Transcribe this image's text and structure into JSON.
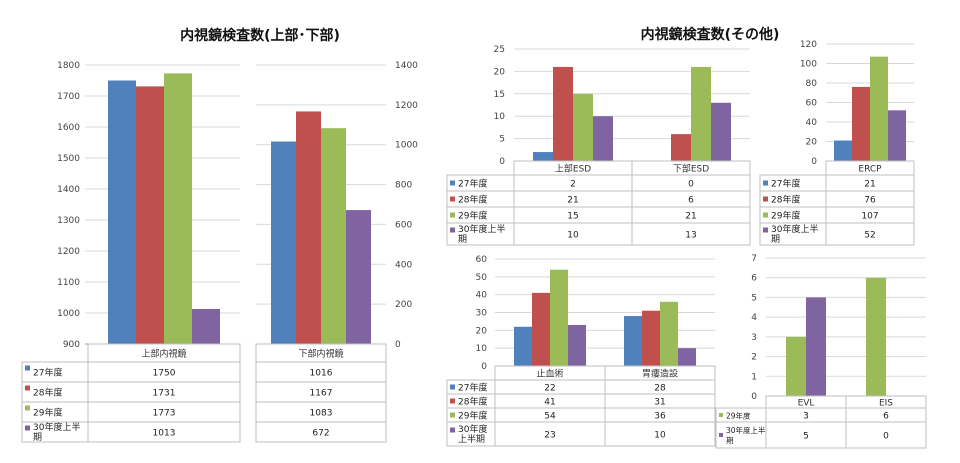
{
  "colors": {
    "27": "#4f81bd",
    "28": "#c0504d",
    "29": "#9bbb59",
    "30": "#8064a2"
  },
  "chart_data": [
    {
      "id": "upper",
      "type": "bar",
      "title": "内視鏡検査数(上部･下部)",
      "categories": [
        "上部内視鏡"
      ],
      "series": [
        {
          "name": "27年度",
          "values": [
            1750
          ]
        },
        {
          "name": "28年度",
          "values": [
            1731
          ]
        },
        {
          "name": "29年度",
          "values": [
            1773
          ]
        },
        {
          "name": "30年度上半期",
          "values": [
            1013
          ]
        }
      ],
      "ylim": [
        900,
        1800
      ],
      "yticks": [
        "900",
        "1000",
        "1100",
        "1200",
        "1300",
        "1400",
        "1500",
        "1600",
        "1700",
        "1800"
      ]
    },
    {
      "id": "lower",
      "type": "bar",
      "categories": [
        "下部内視鏡"
      ],
      "series": [
        {
          "name": "27年度",
          "values": [
            1016
          ]
        },
        {
          "name": "28年度",
          "values": [
            1167
          ]
        },
        {
          "name": "29年度",
          "values": [
            1083
          ]
        },
        {
          "name": "30年度上半期",
          "values": [
            672
          ]
        }
      ],
      "ylim": [
        0,
        1400
      ],
      "yticks": [
        "0",
        "200",
        "400",
        "600",
        "800",
        "1000",
        "1200",
        "1400"
      ]
    },
    {
      "id": "esd",
      "type": "bar",
      "title": "内視鏡検査数(その他)",
      "categories": [
        "上部ESD",
        "下部ESD"
      ],
      "series": [
        {
          "name": "27年度",
          "values": [
            2,
            0
          ]
        },
        {
          "name": "28年度",
          "values": [
            21,
            6
          ]
        },
        {
          "name": "29年度",
          "values": [
            15,
            21
          ]
        },
        {
          "name": "30年度上半期",
          "values": [
            10,
            13
          ]
        }
      ],
      "ylim": [
        0,
        25
      ],
      "yticks": [
        "0",
        "5",
        "10",
        "15",
        "20",
        "25"
      ]
    },
    {
      "id": "ercp",
      "type": "bar",
      "categories": [
        "ERCP"
      ],
      "series": [
        {
          "name": "27年度",
          "values": [
            21
          ]
        },
        {
          "name": "28年度",
          "values": [
            76
          ]
        },
        {
          "name": "29年度",
          "values": [
            107
          ]
        },
        {
          "name": "30年度上半期",
          "values": [
            52
          ]
        }
      ],
      "ylim": [
        0,
        120
      ],
      "yticks": [
        "0",
        "20",
        "40",
        "60",
        "80",
        "100",
        "120"
      ]
    },
    {
      "id": "hemo",
      "type": "bar",
      "categories": [
        "止血術",
        "胃瘻造設"
      ],
      "series": [
        {
          "name": "27年度",
          "values": [
            22,
            28
          ]
        },
        {
          "name": "28年度",
          "values": [
            41,
            31
          ]
        },
        {
          "name": "29年度",
          "values": [
            54,
            36
          ]
        },
        {
          "name": "30年度上半期",
          "values": [
            23,
            10
          ]
        }
      ],
      "ylim": [
        0,
        60
      ],
      "yticks": [
        "0",
        "10",
        "20",
        "30",
        "40",
        "50",
        "60"
      ]
    },
    {
      "id": "evl",
      "type": "bar",
      "categories": [
        "EVL",
        "EIS"
      ],
      "series": [
        {
          "name": "29年度",
          "values": [
            3,
            6
          ]
        },
        {
          "name": "30年度上半期",
          "values": [
            5,
            0
          ]
        }
      ],
      "ylim": [
        0,
        7
      ],
      "yticks": [
        "0",
        "1",
        "2",
        "3",
        "4",
        "5",
        "6",
        "7"
      ]
    }
  ]
}
